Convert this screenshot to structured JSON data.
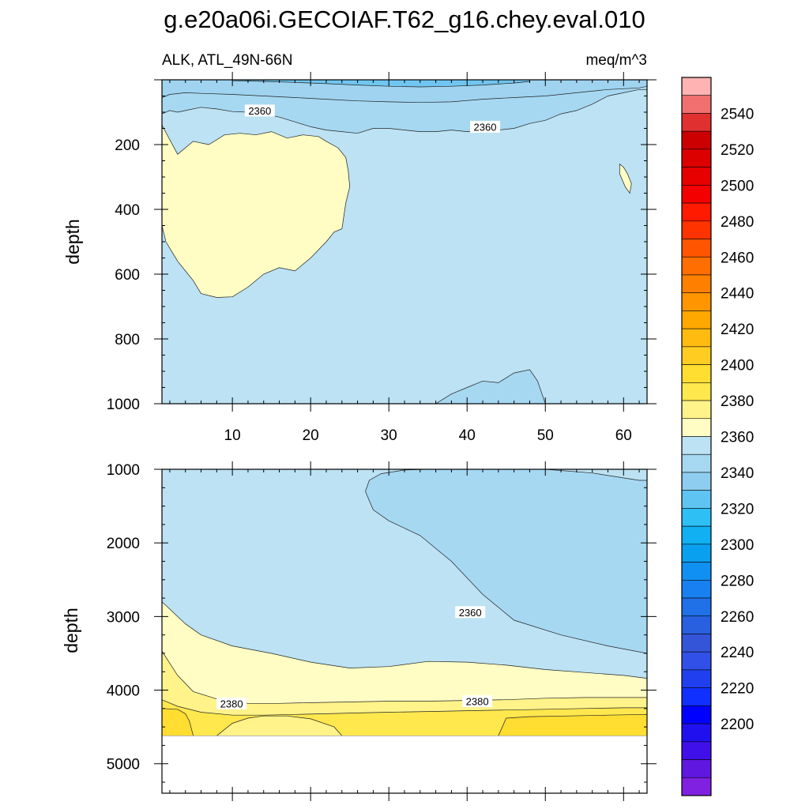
{
  "title": "g.e20a06i.GECOIAF.T62_g16.chey.eval.010",
  "colors": {
    "c2340": "#9fd3f0",
    "c2350": "#a6d8f2",
    "c2360": "#bce2f3",
    "c2380": "#fffdc4",
    "c2390": "#fff38a",
    "c2400": "#ffe74e",
    "c2410": "#ffdd31",
    "c2340_top": "#70c6f0"
  },
  "chart_data": [
    {
      "type": "contour",
      "panel": "top",
      "title_left": "ALK, ATL_49N-66N",
      "title_right": "meq/m^3",
      "ylabel": "depth",
      "xlabel": "",
      "xlim": [
        1,
        63
      ],
      "ylim": [
        1000,
        0
      ],
      "xticks": [
        10,
        20,
        30,
        40,
        50,
        60
      ],
      "yticks": [
        200,
        400,
        600,
        800,
        1000
      ],
      "background_value": 2360,
      "contour_labels": [
        {
          "text": "2360",
          "x": 13.5,
          "y": 95
        },
        {
          "text": "2360",
          "x": 42.3,
          "y": 145
        }
      ],
      "regions": [
        {
          "name": "surface-band-outer",
          "value": 2350,
          "x": [
            1,
            2,
            3,
            4,
            6,
            8,
            10,
            12,
            14,
            16,
            18,
            20,
            22,
            24,
            26,
            28,
            30,
            32,
            34,
            36,
            38,
            40,
            42,
            44,
            46,
            48,
            50,
            52,
            54,
            56,
            58,
            60,
            62,
            63,
            63,
            1
          ],
          "y": [
            105,
            95,
            100,
            95,
            85,
            90,
            98,
            100,
            105,
            115,
            130,
            145,
            155,
            160,
            165,
            150,
            150,
            155,
            160,
            160,
            155,
            160,
            155,
            155,
            150,
            135,
            125,
            105,
            95,
            75,
            50,
            40,
            30,
            30,
            0,
            0
          ]
        },
        {
          "name": "surface-band-inner",
          "value": 2340,
          "x": [
            1,
            2,
            4,
            6,
            10,
            14,
            18,
            22,
            26,
            30,
            34,
            38,
            42,
            46,
            50,
            54,
            58,
            62,
            63,
            63,
            1
          ],
          "y": [
            55,
            45,
            40,
            42,
            45,
            50,
            55,
            60,
            65,
            68,
            70,
            68,
            60,
            55,
            50,
            40,
            30,
            25,
            20,
            0,
            0
          ]
        },
        {
          "name": "surface-band-core",
          "value": 2330,
          "x": [
            10,
            14,
            18,
            22,
            26,
            30,
            34,
            38,
            42,
            46,
            48,
            48,
            10
          ],
          "y": [
            3,
            5,
            8,
            12,
            16,
            20,
            22,
            20,
            16,
            10,
            5,
            0,
            0
          ]
        },
        {
          "name": "high-alk-tongue",
          "value": 2380,
          "x": [
            1,
            1.5,
            2.5,
            3,
            4,
            5,
            6,
            8,
            10,
            12,
            14,
            16,
            18,
            20,
            22,
            23,
            24,
            24.5,
            25,
            24.8,
            24.5,
            23.5,
            22,
            21,
            19,
            17,
            15,
            13,
            11,
            9,
            7,
            5,
            3,
            1
          ],
          "y": [
            450,
            500,
            540,
            560,
            590,
            620,
            660,
            672,
            670,
            640,
            600,
            580,
            590,
            550,
            500,
            470,
            460,
            380,
            330,
            280,
            240,
            210,
            190,
            175,
            170,
            180,
            160,
            170,
            165,
            170,
            200,
            190,
            230,
            140
          ]
        },
        {
          "name": "small-blob-east",
          "value": 2380,
          "x": [
            59.5,
            60,
            60.5,
            61,
            60.8,
            60.2,
            59.5
          ],
          "y": [
            260,
            270,
            290,
            320,
            350,
            330,
            290
          ]
        },
        {
          "name": "deep-low-bump",
          "value": 2350,
          "x": [
            36,
            38,
            40,
            42,
            44,
            46,
            48,
            49,
            50,
            36
          ],
          "y": [
            1000,
            970,
            950,
            930,
            935,
            905,
            895,
            930,
            1000,
            1000
          ]
        }
      ]
    },
    {
      "type": "contour",
      "panel": "bottom",
      "ylabel": "depth",
      "xlabel": "",
      "xlim": [
        1,
        63
      ],
      "ylim": [
        5400,
        1000
      ],
      "yticks": [
        1000,
        2000,
        3000,
        4000,
        5000
      ],
      "background_value": 2360,
      "missing_below_depth": 4620,
      "contour_labels": [
        {
          "text": "2360",
          "x": 40.4,
          "y": 2940
        },
        {
          "text": "2380",
          "x": 9.9,
          "y": 4180
        },
        {
          "text": "2380",
          "x": 41.3,
          "y": 4150
        }
      ],
      "regions": [
        {
          "name": "deep-water-mass",
          "value": 2350,
          "x": [
            35,
            40,
            45,
            50,
            56,
            62,
            63,
            63,
            58,
            52,
            46,
            42,
            38,
            34,
            30,
            28,
            27,
            27.5,
            29,
            32,
            35
          ],
          "y": [
            1000,
            1000,
            1000,
            1000,
            1050,
            1150,
            1150,
            3500,
            3400,
            3250,
            3050,
            2700,
            2250,
            1900,
            1700,
            1550,
            1300,
            1150,
            1060,
            1010,
            1000
          ]
        },
        {
          "name": "bottom-layer-2380",
          "value": 2380,
          "x": [
            1,
            1,
            2,
            4,
            6,
            10,
            15,
            20,
            25,
            30,
            35,
            40,
            45,
            50,
            55,
            60,
            63,
            63,
            1
          ],
          "y": [
            4620,
            2800,
            2900,
            3100,
            3250,
            3400,
            3500,
            3620,
            3700,
            3680,
            3610,
            3620,
            3660,
            3720,
            3760,
            3800,
            3840,
            4620,
            4620
          ]
        },
        {
          "name": "bottom-layer-2390",
          "value": 2390,
          "x": [
            1,
            1,
            3,
            5,
            8,
            12,
            16,
            20,
            25,
            30,
            35,
            40,
            45,
            50,
            55,
            60,
            63,
            63,
            1
          ],
          "y": [
            4620,
            3470,
            3800,
            4020,
            4120,
            4180,
            4180,
            4170,
            4160,
            4150,
            4150,
            4140,
            4130,
            4110,
            4100,
            4100,
            4100,
            4620,
            4620
          ]
        },
        {
          "name": "bottom-layer-2400",
          "value": 2400,
          "x": [
            1,
            1,
            3,
            6,
            10,
            14,
            18,
            22,
            26,
            30,
            35,
            40,
            45,
            50,
            55,
            60,
            63,
            63,
            1
          ],
          "y": [
            4620,
            4130,
            4220,
            4300,
            4340,
            4340,
            4330,
            4320,
            4310,
            4300,
            4290,
            4280,
            4270,
            4260,
            4250,
            4240,
            4240,
            4620,
            4620
          ]
        },
        {
          "name": "bottom-pocket-east",
          "value": 2410,
          "x": [
            44,
            45,
            48,
            53,
            58,
            63,
            63,
            44
          ],
          "y": [
            4620,
            4380,
            4360,
            4350,
            4340,
            4330,
            4620,
            4620
          ]
        },
        {
          "name": "bottom-pocket-west",
          "value": 2410,
          "x": [
            1,
            1,
            3,
            4,
            4.5,
            5,
            1
          ],
          "y": [
            4620,
            4250,
            4260,
            4320,
            4420,
            4620,
            4620
          ]
        },
        {
          "name": "bottom-dome-2390",
          "value": 2390,
          "x": [
            8,
            10,
            12,
            14,
            17,
            20,
            23,
            24,
            8
          ],
          "y": [
            4620,
            4450,
            4380,
            4350,
            4350,
            4390,
            4500,
            4620,
            4620
          ]
        }
      ]
    }
  ],
  "colorbar": {
    "labels": [
      "2540",
      "2520",
      "2500",
      "2480",
      "2460",
      "2440",
      "2420",
      "2400",
      "2380",
      "2360",
      "2340",
      "2320",
      "2300",
      "2280",
      "2260",
      "2240",
      "2220",
      "2200"
    ],
    "colors": [
      "#ffb3b3",
      "#f07070",
      "#e03030",
      "#cc0000",
      "#dd0000",
      "#e60000",
      "#f50000",
      "#ff1a00",
      "#ff3300",
      "#ff5500",
      "#ff6e00",
      "#ff8000",
      "#ff9500",
      "#ffa800",
      "#ffbb10",
      "#ffcc22",
      "#ffdd31",
      "#ffe74e",
      "#fff38a",
      "#fffdc4",
      "#bce2f3",
      "#a6d8f2",
      "#8ecdf0",
      "#5fc4f2",
      "#2ebff4",
      "#10b0f2",
      "#0aa0f0",
      "#1090f0",
      "#1880f0",
      "#2070e8",
      "#2860e0",
      "#3555d8",
      "#3050e8",
      "#2040f0",
      "#1030ff",
      "#0000ff",
      "#2010f0",
      "#4010e8",
      "#6018e0",
      "#8020e0"
    ]
  }
}
